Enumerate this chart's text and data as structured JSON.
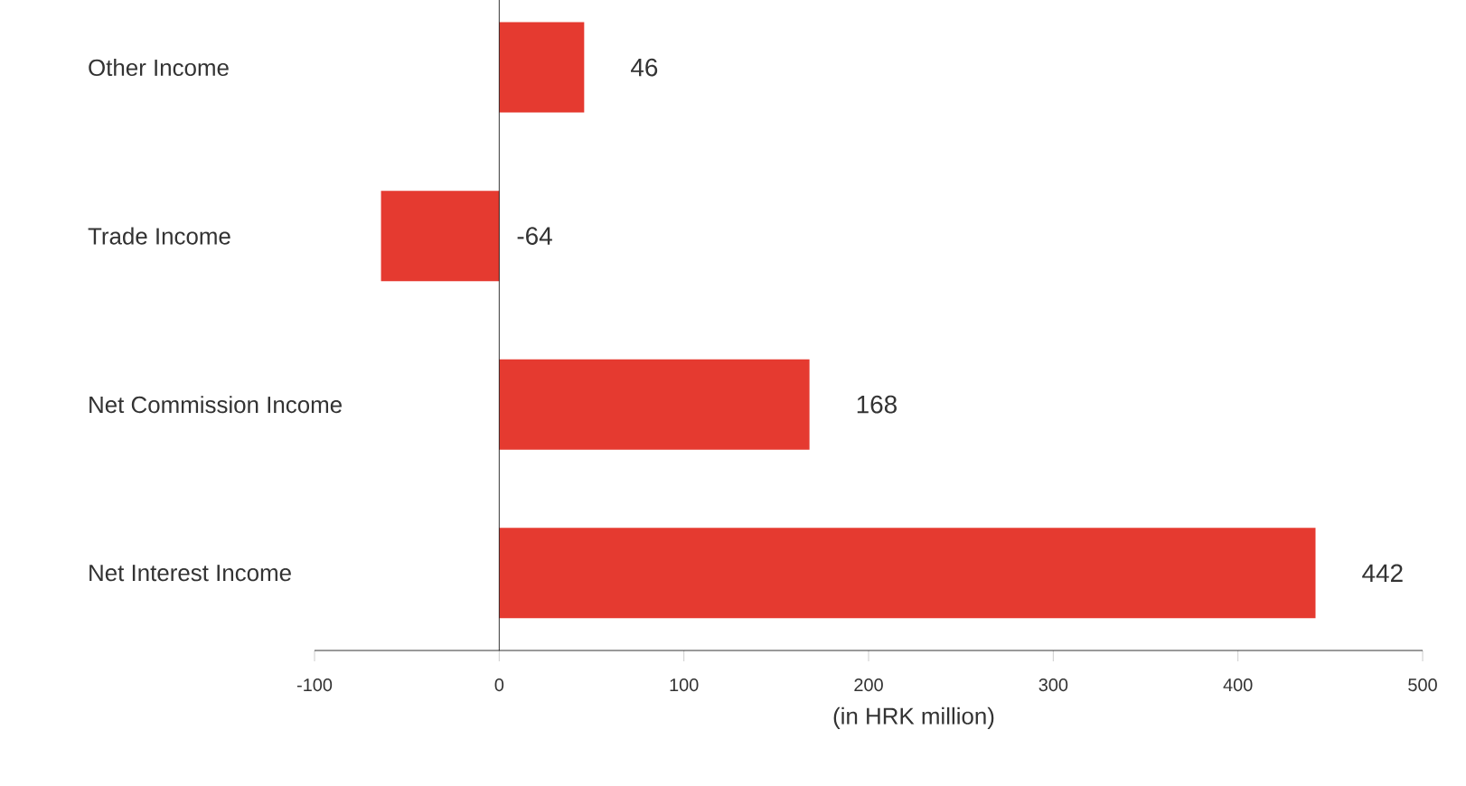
{
  "chart_data": {
    "type": "bar",
    "orientation": "horizontal",
    "xlabel": "(in HRK million)",
    "categories": [
      "Other Income",
      "Trade Income",
      "Net Commission Income",
      "Net Interest Income"
    ],
    "values": [
      46,
      -64,
      168,
      442
    ],
    "color": "#e53a30",
    "xlim": [
      -100,
      500
    ],
    "xticks": [
      -100,
      0,
      100,
      200,
      300,
      400,
      500
    ],
    "data_labels": true
  }
}
